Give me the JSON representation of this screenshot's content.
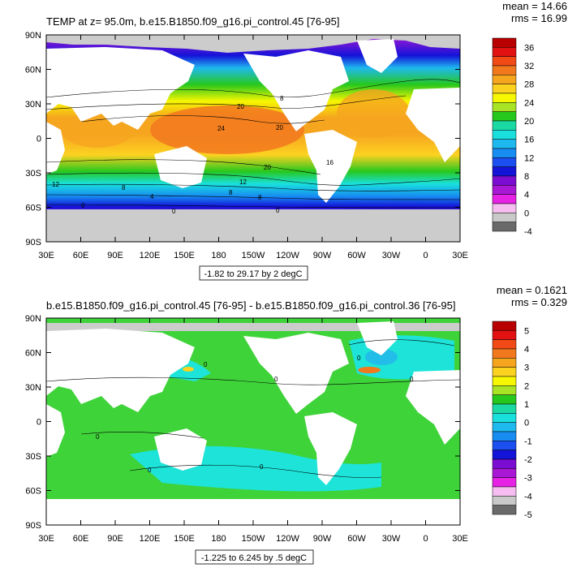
{
  "panels": [
    {
      "title": "TEMP at z=  95.0m, b.e15.B1850.f09_g16.pi_control.45 [76-95]",
      "mean_text": "mean = 14.66",
      "rms_text": "rms = 16.99",
      "range_label": "-1.82 to 29.17 by 2 degC",
      "colorbar": {
        "labels": [
          "36",
          "32",
          "28",
          "24",
          "20",
          "16",
          "12",
          "8",
          "4",
          "0",
          "-4"
        ],
        "colors": [
          "#b90000",
          "#e21212",
          "#f14a17",
          "#f2781e",
          "#f6a51f",
          "#fcd221",
          "#f6f700",
          "#a9e326",
          "#27c81e",
          "#1bd9a3",
          "#19e0dd",
          "#1eb9ee",
          "#178cf1",
          "#1c4ff0",
          "#1413d8",
          "#7a0dd1",
          "#a818d5",
          "#e622e4",
          "#f5bdf0",
          "#c9c9c9",
          "#6a6a6a"
        ]
      },
      "contour_labels": [
        "20",
        "24",
        "20",
        "20",
        "16",
        "12",
        "12",
        "8",
        "8",
        "8",
        "4",
        "0",
        "0",
        "0",
        "8"
      ]
    },
    {
      "title": "b.e15.B1850.f09_g16.pi_control.45 [76-95] - b.e15.B1850.f09_g16.pi_control.36 [76-95]",
      "mean_text": "mean = 0.1621",
      "rms_text": "rms = 0.329",
      "range_label": "-1.225 to 6.245 by .5 degC",
      "colorbar": {
        "labels": [
          "5",
          "4",
          "3",
          "2",
          "1",
          "0",
          "-1",
          "-2",
          "-3",
          "-4",
          "-5"
        ],
        "colors": [
          "#b90000",
          "#e21212",
          "#f14a17",
          "#f2781e",
          "#f6a51f",
          "#fcd221",
          "#f6f700",
          "#a9e326",
          "#27c81e",
          "#1bd9a3",
          "#19e0dd",
          "#1eb9ee",
          "#178cf1",
          "#1c4ff0",
          "#1413d8",
          "#7a0dd1",
          "#a818d5",
          "#e622e4",
          "#f5bdf0",
          "#c9c9c9",
          "#6a6a6a"
        ]
      },
      "contour_labels": [
        "0",
        "0",
        "0",
        "0",
        "0",
        "0",
        "0"
      ]
    }
  ],
  "axes": {
    "lat_ticks": [
      "90N",
      "60N",
      "30N",
      "0",
      "30S",
      "60S",
      "90S"
    ],
    "lon_ticks": [
      "30E",
      "60E",
      "90E",
      "120E",
      "150E",
      "180",
      "150W",
      "120W",
      "90W",
      "60W",
      "30W",
      "0",
      "30E"
    ]
  },
  "palette": {
    "land": "#ffffff",
    "ice_gray": "#cccccc",
    "diff_green": "#3fd33a",
    "diff_cyan": "#1de3d9",
    "diff_lightblue": "#22bde8"
  }
}
